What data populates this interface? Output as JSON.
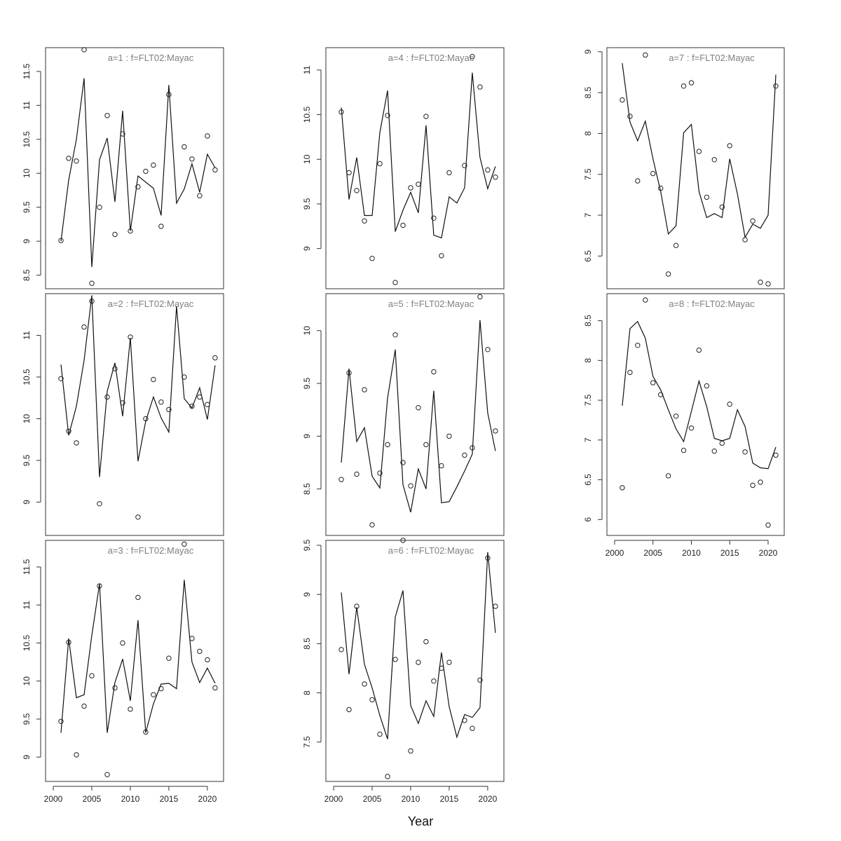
{
  "figure": {
    "xlabel": "Year"
  },
  "chart_data": [
    {
      "type": "line",
      "title": "a=1  :  f=FLT02:Mayac",
      "x": [
        2001,
        2002,
        2003,
        2004,
        2005,
        2006,
        2007,
        2008,
        2009,
        2010,
        2011,
        2012,
        2013,
        2014,
        2015,
        2016,
        2017,
        2018,
        2019,
        2020,
        2021
      ],
      "ylim": [
        8.3,
        11.85
      ],
      "yticks": [
        8.5,
        9.0,
        9.5,
        10.0,
        10.5,
        11.0,
        11.5
      ],
      "xticks": [
        2000,
        2005,
        2010,
        2015,
        2020
      ],
      "show_xticks": false,
      "series": [
        {
          "kind": "line",
          "values": [
            9.0,
            9.9,
            10.5,
            11.4,
            8.62,
            10.2,
            10.52,
            9.58,
            10.92,
            9.15,
            9.96,
            9.87,
            9.78,
            9.38,
            11.3,
            9.56,
            9.77,
            10.14,
            9.72,
            10.28,
            10.08
          ]
        },
        {
          "kind": "points",
          "values": [
            9.01,
            10.22,
            10.18,
            11.82,
            8.38,
            9.5,
            10.85,
            9.1,
            10.58,
            9.15,
            9.8,
            10.03,
            10.12,
            9.22,
            11.16,
            null,
            10.39,
            10.21,
            9.67,
            10.55,
            10.05
          ]
        }
      ]
    },
    {
      "type": "line",
      "title": "a=2  :  f=FLT02:Mayac",
      "x": [
        2001,
        2002,
        2003,
        2004,
        2005,
        2006,
        2007,
        2008,
        2009,
        2010,
        2011,
        2012,
        2013,
        2014,
        2015,
        2016,
        2017,
        2018,
        2019,
        2020,
        2021
      ],
      "ylim": [
        8.6,
        11.5
      ],
      "yticks": [
        9.0,
        9.5,
        10.0,
        10.5,
        11.0
      ],
      "xticks": [
        2000,
        2005,
        2010,
        2015,
        2020
      ],
      "show_xticks": false,
      "series": [
        {
          "kind": "line",
          "values": [
            10.65,
            9.8,
            10.15,
            10.7,
            11.48,
            9.3,
            10.33,
            10.67,
            10.03,
            10.97,
            9.49,
            9.97,
            10.26,
            10.01,
            9.84,
            11.35,
            10.24,
            10.13,
            10.37,
            9.99,
            10.64
          ]
        },
        {
          "kind": "points",
          "values": [
            10.48,
            9.85,
            9.71,
            11.1,
            11.41,
            8.98,
            10.26,
            10.6,
            10.19,
            10.98,
            8.82,
            10.0,
            10.47,
            10.2,
            10.11,
            null,
            10.5,
            10.15,
            10.26,
            10.17,
            10.73
          ]
        }
      ]
    },
    {
      "type": "line",
      "title": "a=3  :  f=FLT02:Mayac",
      "x": [
        2001,
        2002,
        2003,
        2004,
        2005,
        2006,
        2007,
        2008,
        2009,
        2010,
        2011,
        2012,
        2013,
        2014,
        2015,
        2016,
        2017,
        2018,
        2019,
        2020,
        2021
      ],
      "ylim": [
        8.68,
        11.85
      ],
      "yticks": [
        9.0,
        9.5,
        10.0,
        10.5,
        11.0,
        11.5
      ],
      "xticks": [
        2000,
        2005,
        2010,
        2015,
        2020
      ],
      "show_xticks": true,
      "series": [
        {
          "kind": "line",
          "values": [
            9.32,
            10.56,
            9.78,
            9.82,
            10.6,
            11.28,
            9.32,
            9.98,
            10.29,
            9.74,
            10.8,
            9.32,
            9.7,
            9.96,
            9.97,
            9.9,
            11.33,
            10.25,
            9.98,
            10.17,
            9.97
          ]
        },
        {
          "kind": "points",
          "values": [
            9.47,
            10.51,
            9.03,
            9.67,
            10.07,
            11.25,
            8.77,
            9.91,
            10.5,
            9.63,
            11.1,
            9.33,
            9.82,
            9.9,
            10.3,
            null,
            11.8,
            10.56,
            10.39,
            10.28,
            9.91
          ]
        }
      ]
    },
    {
      "type": "line",
      "title": "a=4  :  f=FLT02:Mayac",
      "x": [
        2001,
        2002,
        2003,
        2004,
        2005,
        2006,
        2007,
        2008,
        2009,
        2010,
        2011,
        2012,
        2013,
        2014,
        2015,
        2016,
        2017,
        2018,
        2019,
        2020,
        2021
      ],
      "ylim": [
        8.55,
        11.25
      ],
      "yticks": [
        9.0,
        9.5,
        10.0,
        10.5,
        11.0
      ],
      "xticks": [
        2000,
        2005,
        2010,
        2015,
        2020
      ],
      "show_xticks": false,
      "series": [
        {
          "kind": "line",
          "values": [
            10.58,
            9.55,
            10.02,
            9.37,
            9.37,
            10.3,
            10.77,
            9.19,
            9.43,
            9.63,
            9.4,
            10.38,
            9.15,
            9.12,
            9.58,
            9.51,
            9.68,
            10.97,
            10.02,
            9.67,
            9.92
          ]
        },
        {
          "kind": "points",
          "values": [
            10.53,
            9.85,
            9.65,
            9.31,
            8.89,
            9.95,
            10.49,
            8.62,
            9.26,
            9.68,
            9.72,
            10.48,
            9.34,
            8.92,
            9.85,
            null,
            9.93,
            11.15,
            10.81,
            9.88,
            9.8
          ]
        }
      ]
    },
    {
      "type": "line",
      "title": "a=5  :  f=FLT02:Mayac",
      "x": [
        2001,
        2002,
        2003,
        2004,
        2005,
        2006,
        2007,
        2008,
        2009,
        2010,
        2011,
        2012,
        2013,
        2014,
        2015,
        2016,
        2017,
        2018,
        2019,
        2020,
        2021
      ],
      "ylim": [
        8.06,
        10.35
      ],
      "yticks": [
        8.5,
        9.0,
        9.5,
        10.0
      ],
      "xticks": [
        2000,
        2005,
        2010,
        2015,
        2020
      ],
      "show_xticks": false,
      "series": [
        {
          "kind": "line",
          "values": [
            8.75,
            9.64,
            8.95,
            9.08,
            8.62,
            8.51,
            9.36,
            9.82,
            8.54,
            8.28,
            8.69,
            8.5,
            9.43,
            8.37,
            8.38,
            8.52,
            8.67,
            8.83,
            10.1,
            9.22,
            8.86
          ]
        },
        {
          "kind": "points",
          "values": [
            8.59,
            9.6,
            8.64,
            9.44,
            8.16,
            8.65,
            8.92,
            9.96,
            8.75,
            8.53,
            9.27,
            8.92,
            9.61,
            8.72,
            9.0,
            null,
            8.82,
            8.89,
            10.32,
            9.82,
            9.05
          ]
        }
      ]
    },
    {
      "type": "line",
      "title": "a=6  :  f=FLT02:Mayac",
      "x": [
        2001,
        2002,
        2003,
        2004,
        2005,
        2006,
        2007,
        2008,
        2009,
        2010,
        2011,
        2012,
        2013,
        2014,
        2015,
        2016,
        2017,
        2018,
        2019,
        2020,
        2021
      ],
      "ylim": [
        7.1,
        9.55
      ],
      "yticks": [
        7.5,
        8.0,
        8.5,
        9.0,
        9.5
      ],
      "xticks": [
        2000,
        2005,
        2010,
        2015,
        2020
      ],
      "show_xticks": true,
      "series": [
        {
          "kind": "line",
          "values": [
            9.02,
            8.19,
            8.87,
            8.29,
            8.05,
            7.77,
            7.53,
            8.77,
            9.04,
            7.87,
            7.69,
            7.92,
            7.76,
            8.41,
            7.86,
            7.55,
            7.78,
            7.75,
            7.85,
            9.43,
            8.61
          ]
        },
        {
          "kind": "points",
          "values": [
            8.44,
            7.83,
            8.88,
            8.09,
            7.93,
            7.58,
            7.15,
            8.34,
            9.55,
            7.41,
            8.31,
            8.52,
            8.12,
            8.25,
            8.31,
            null,
            7.72,
            7.64,
            8.13,
            9.37,
            8.88
          ]
        }
      ]
    },
    {
      "type": "line",
      "title": "a=7  :  f=FLT02:Mayac",
      "x": [
        2001,
        2002,
        2003,
        2004,
        2005,
        2006,
        2007,
        2008,
        2009,
        2010,
        2011,
        2012,
        2013,
        2014,
        2015,
        2016,
        2017,
        2018,
        2019,
        2020,
        2021
      ],
      "ylim": [
        6.1,
        9.05
      ],
      "yticks": [
        6.5,
        7.0,
        7.5,
        8.0,
        8.5,
        9.0
      ],
      "xticks": [
        2000,
        2005,
        2010,
        2015,
        2020
      ],
      "show_xticks": false,
      "series": [
        {
          "kind": "line",
          "values": [
            8.86,
            8.14,
            7.91,
            8.15,
            7.69,
            7.29,
            6.77,
            6.87,
            8.01,
            8.11,
            7.29,
            6.97,
            7.02,
            6.97,
            7.69,
            7.26,
            6.73,
            6.89,
            6.84,
            7.0,
            8.72
          ]
        },
        {
          "kind": "points",
          "values": [
            8.41,
            8.21,
            7.42,
            8.96,
            7.51,
            7.33,
            6.28,
            6.63,
            8.58,
            8.62,
            7.78,
            7.22,
            7.68,
            7.1,
            7.85,
            null,
            6.7,
            6.93,
            6.18,
            6.16,
            8.58
          ]
        }
      ]
    },
    {
      "type": "line",
      "title": "a=8  :  f=FLT02:Mayac",
      "x": [
        2001,
        2002,
        2003,
        2004,
        2005,
        2006,
        2007,
        2008,
        2009,
        2010,
        2011,
        2012,
        2013,
        2014,
        2015,
        2016,
        2017,
        2018,
        2019,
        2020,
        2021
      ],
      "ylim": [
        5.8,
        8.84
      ],
      "yticks": [
        6.0,
        6.5,
        7.0,
        7.5,
        8.0,
        8.5
      ],
      "xticks": [
        2000,
        2005,
        2010,
        2015,
        2020
      ],
      "show_xticks": true,
      "series": [
        {
          "kind": "line",
          "values": [
            7.43,
            8.4,
            8.49,
            8.28,
            7.8,
            7.63,
            7.38,
            7.14,
            6.98,
            7.36,
            7.74,
            7.42,
            7.02,
            6.99,
            7.02,
            7.38,
            7.17,
            6.71,
            6.65,
            6.64,
            6.91
          ]
        },
        {
          "kind": "points",
          "values": [
            6.4,
            7.85,
            8.19,
            8.76,
            7.72,
            7.57,
            6.55,
            7.3,
            6.87,
            7.15,
            8.13,
            7.68,
            6.86,
            6.96,
            7.45,
            null,
            6.85,
            6.43,
            6.47,
            5.93,
            6.81
          ]
        }
      ]
    }
  ]
}
